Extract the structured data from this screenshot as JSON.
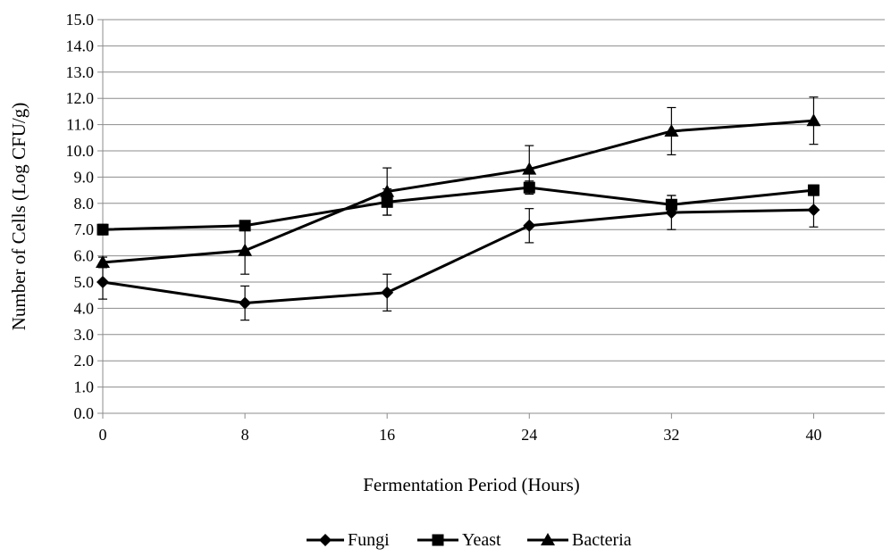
{
  "chart_data": {
    "type": "line",
    "xlabel": "Fermentation Period (Hours)",
    "ylabel": "Number of Cells (Log CFU/g)",
    "x": [
      0,
      8,
      16,
      24,
      32,
      40
    ],
    "x_ticks": [
      "0",
      "8",
      "16",
      "24",
      "32",
      "40"
    ],
    "xlim": [
      0,
      44
    ],
    "ylim": [
      0,
      15
    ],
    "y_ticks": [
      "0.0",
      "1.0",
      "2.0",
      "3.0",
      "4.0",
      "5.0",
      "6.0",
      "7.0",
      "8.0",
      "9.0",
      "10.0",
      "11.0",
      "12.0",
      "13.0",
      "14.0",
      "15.0"
    ],
    "grid": "horizontal",
    "legend_position": "bottom",
    "line_color": "#000000",
    "series": [
      {
        "name": "Fungi",
        "marker": "diamond",
        "values": [
          5.0,
          4.2,
          4.6,
          7.15,
          7.65,
          7.75
        ],
        "errors": [
          0.65,
          0.65,
          0.7,
          0.65,
          0.65,
          0.65
        ]
      },
      {
        "name": "Yeast",
        "marker": "square",
        "values": [
          7.0,
          7.15,
          8.05,
          8.6,
          7.95,
          8.5
        ],
        "errors": [
          0.2,
          0.15,
          0.5,
          0.25,
          0.35,
          0.2
        ]
      },
      {
        "name": "Bacteria",
        "marker": "triangle",
        "values": [
          5.75,
          6.2,
          8.45,
          9.3,
          10.75,
          11.15
        ],
        "errors": [
          0.2,
          0.9,
          0.9,
          0.9,
          0.9,
          0.9
        ]
      }
    ]
  }
}
